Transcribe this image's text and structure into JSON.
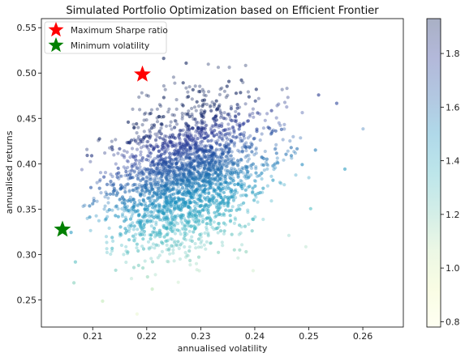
{
  "chart_data": {
    "type": "scatter",
    "title": "Simulated Portfolio Optimization based on Efficient Frontier",
    "xlabel": "annualised volatility",
    "ylabel": "annualised returns",
    "xlim": [
      0.2005,
      0.2675
    ],
    "ylim": [
      0.22,
      0.56
    ],
    "x_ticks": [
      "0.21",
      "0.22",
      "0.23",
      "0.24",
      "0.25",
      "0.26"
    ],
    "y_ticks": [
      "0.25",
      "0.30",
      "0.35",
      "0.40",
      "0.45",
      "0.50",
      "0.55"
    ],
    "colorbar": {
      "colormap": "YlGnBu",
      "range": [
        0.78,
        1.93
      ],
      "ticks": [
        "0.8",
        "1.0",
        "1.2",
        "1.4",
        "1.6",
        "1.8"
      ]
    },
    "cloud": {
      "description_center_x": 0.227,
      "description_center_y": 0.385,
      "approx_points": 10000
    },
    "highlights": [
      {
        "name": "Maximum Sharpe ratio",
        "x": 0.2192,
        "y": 0.4985,
        "color": "#ff0000",
        "marker": "star"
      },
      {
        "name": "Minimum volatility",
        "x": 0.2044,
        "y": 0.3275,
        "color": "#008000",
        "marker": "star"
      }
    ],
    "legend_position": "top-left",
    "grid": false
  }
}
